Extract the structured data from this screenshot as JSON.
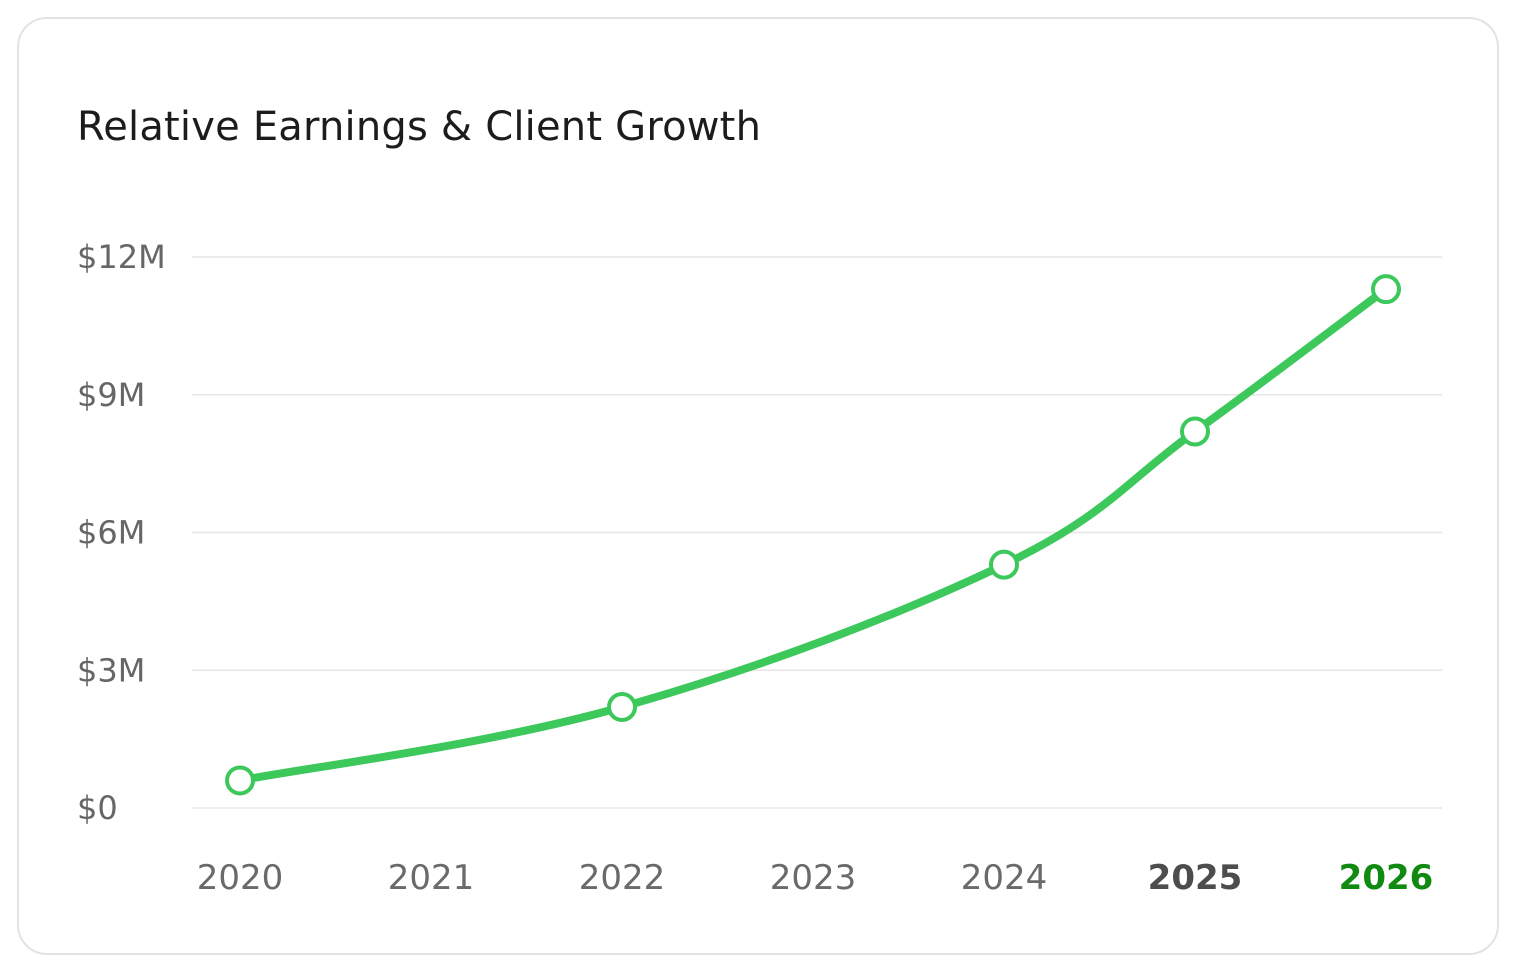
{
  "chart_data": {
    "type": "line",
    "title": "Relative Earnings & Client Growth",
    "xlabel": "",
    "ylabel": "",
    "x": [
      "2020",
      "2021",
      "2022",
      "2023",
      "2024",
      "2025",
      "2026"
    ],
    "series": [
      {
        "x": [
          "2020",
          "2022",
          "2024",
          "2025",
          "2026"
        ],
        "values": [
          0.6,
          2.2,
          5.3,
          8.2,
          11.3
        ]
      }
    ],
    "y_ticks": [
      {
        "value": 0,
        "label": "$0"
      },
      {
        "value": 3,
        "label": "$3M"
      },
      {
        "value": 6,
        "label": "$6M"
      },
      {
        "value": 9,
        "label": "$9M"
      },
      {
        "value": 12,
        "label": "$12M"
      }
    ],
    "ylim": [
      0,
      12
    ],
    "y_unit": "millions of dollars",
    "grid": "horizontal",
    "highlighted_x": "2026",
    "colors": {
      "line": "#3cc85a",
      "marker_fill": "#ffffff",
      "highlight_label": "#118a11",
      "grid": "#e6e6e6"
    }
  }
}
